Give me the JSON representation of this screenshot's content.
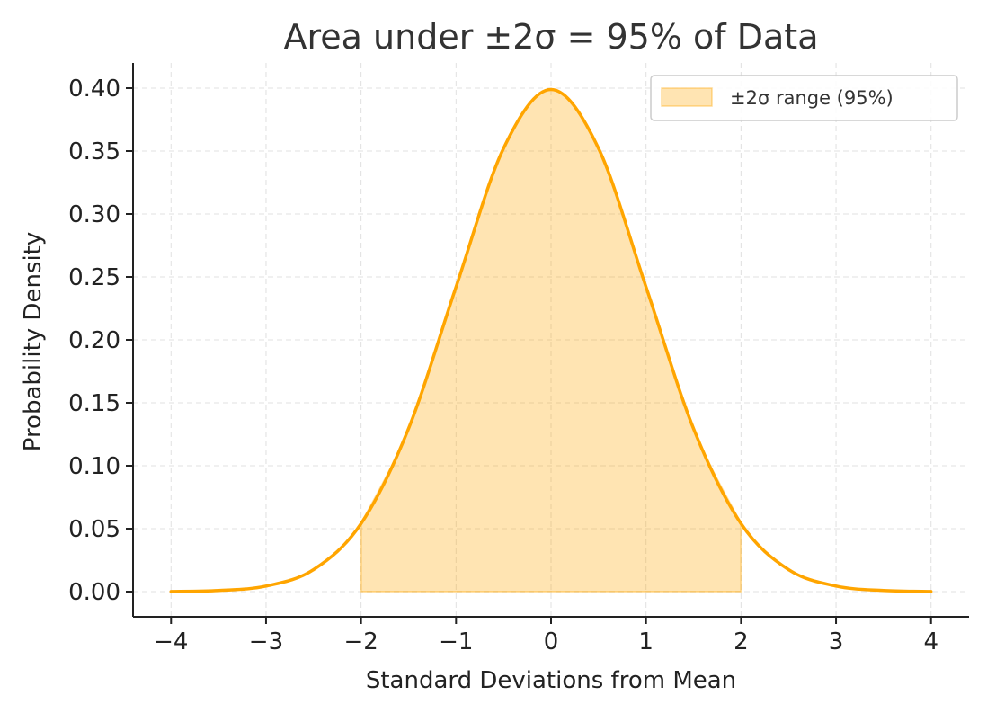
{
  "chart_data": {
    "type": "line",
    "title": "Area under ±2σ = 95% of Data",
    "xlabel": "Standard Deviations from Mean",
    "ylabel": "Probability Density",
    "xlim": [
      -4.4,
      4.4
    ],
    "ylim": [
      -0.02,
      0.42
    ],
    "xticks": [
      -4,
      -3,
      -2,
      -1,
      0,
      1,
      2,
      3,
      4
    ],
    "xtick_labels": [
      "−4",
      "−3",
      "−2",
      "−1",
      "0",
      "1",
      "2",
      "3",
      "4"
    ],
    "yticks": [
      0.0,
      0.05,
      0.1,
      0.15,
      0.2,
      0.25,
      0.3,
      0.35,
      0.4
    ],
    "ytick_labels": [
      "0.00",
      "0.05",
      "0.10",
      "0.15",
      "0.20",
      "0.25",
      "0.30",
      "0.35",
      "0.40"
    ],
    "grid": true,
    "legend_position": "top-right",
    "series": [
      {
        "kind": "line",
        "color": "#FFA500",
        "x": [
          -4.0,
          -3.5,
          -3.0,
          -2.5,
          -2.0,
          -1.5,
          -1.0,
          -0.5,
          0.0,
          0.5,
          1.0,
          1.5,
          2.0,
          2.5,
          3.0,
          3.5,
          4.0
        ],
        "y": [
          0.0001,
          0.0009,
          0.0044,
          0.0175,
          0.054,
          0.1295,
          0.242,
          0.3521,
          0.3989,
          0.3521,
          0.242,
          0.1295,
          0.054,
          0.0175,
          0.0044,
          0.0009,
          0.0001
        ]
      },
      {
        "kind": "area",
        "name": "±2σ range (95%)",
        "color": "#FFA500",
        "fill_opacity": 0.3,
        "x": [
          -2.0,
          -1.5,
          -1.0,
          -0.5,
          0.0,
          0.5,
          1.0,
          1.5,
          2.0
        ],
        "y": [
          0.054,
          0.1295,
          0.242,
          0.3521,
          0.3989,
          0.3521,
          0.242,
          0.1295,
          0.054
        ]
      }
    ]
  }
}
